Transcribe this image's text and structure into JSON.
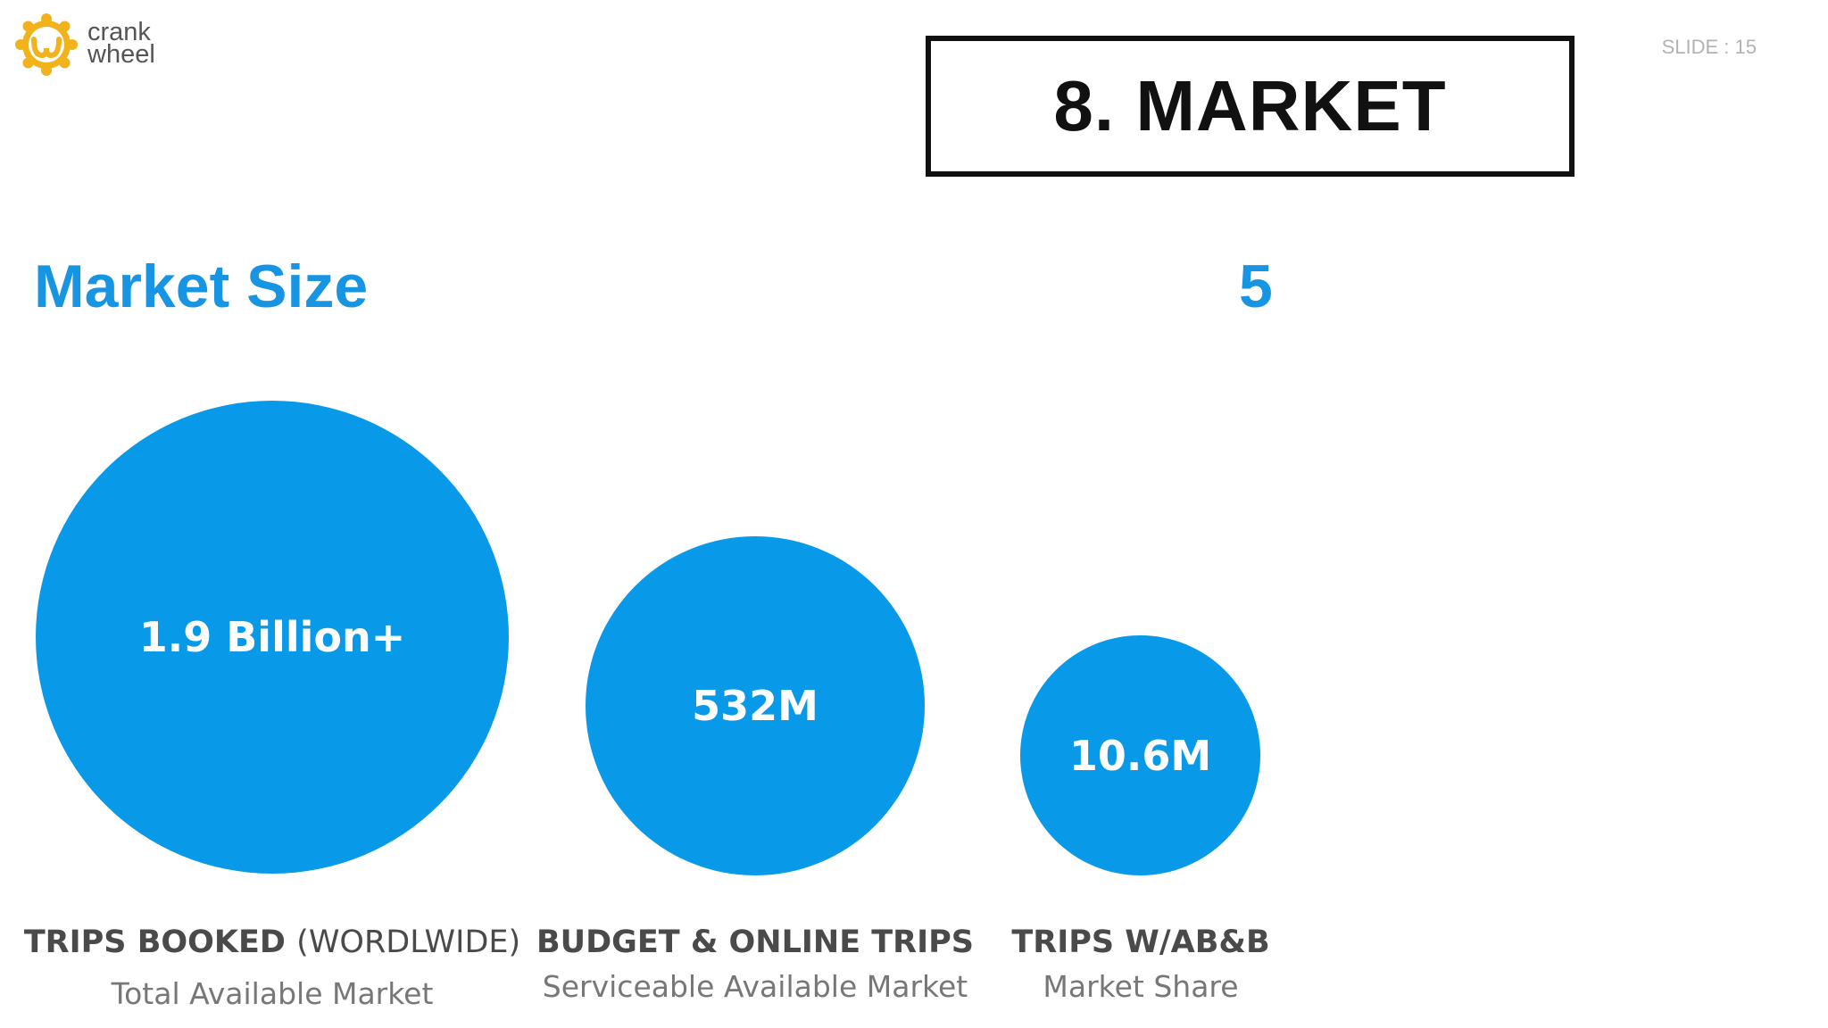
{
  "brand": {
    "line1": "crank",
    "line2": "wheel",
    "icon": "crankwheel-gear-logo-icon",
    "colors": {
      "logo": "#f2b21b",
      "text": "#555555"
    }
  },
  "slide_label": "SLIDE : 15",
  "title": "8. MARKET",
  "section_heading": "Market Size",
  "stray_number": "5",
  "colors": {
    "accent": "#1795e3",
    "circle": "#0899e8",
    "title_border": "#111111"
  },
  "circles": [
    {
      "value": "1.9 Billion+",
      "caption_bold": "TRIPS BOOKED",
      "caption_light": "(WORDLWIDE)",
      "subcaption": "Total Available Market"
    },
    {
      "value": "532M",
      "caption_bold": "BUDGET & ONLINE TRIPS",
      "caption_light": "",
      "subcaption": "Serviceable Available Market"
    },
    {
      "value": "10.6M",
      "caption_bold": "TRIPS W/AB&B",
      "caption_light": "",
      "subcaption": "Market Share"
    }
  ]
}
